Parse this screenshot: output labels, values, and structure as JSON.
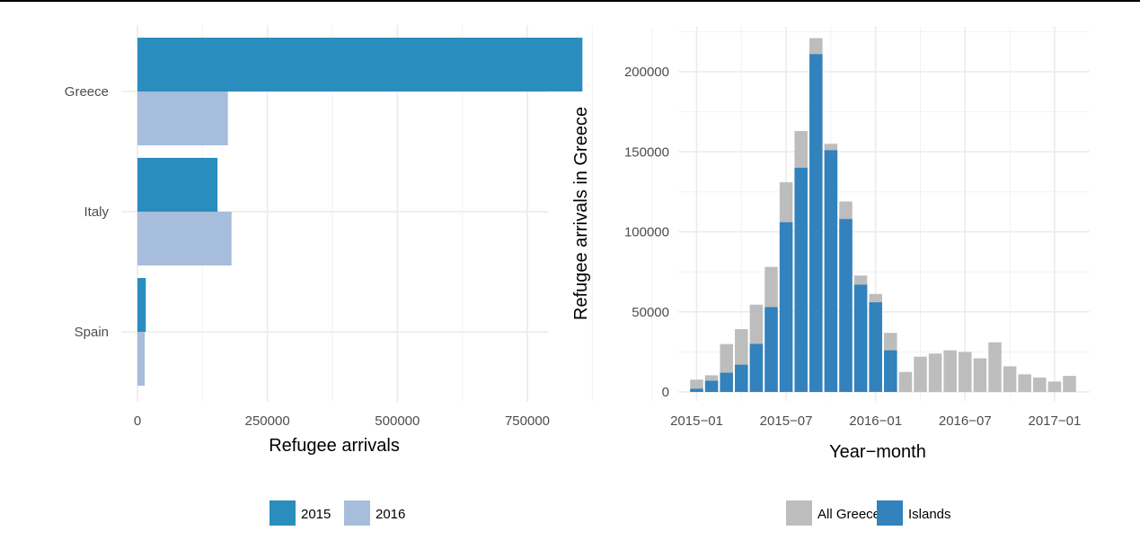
{
  "chart_data": [
    {
      "type": "bar",
      "orientation": "horizontal",
      "categories": [
        "Greece",
        "Italy",
        "Spain"
      ],
      "series": [
        {
          "name": "2015",
          "values": [
            856000,
            154000,
            16000
          ],
          "color": "#2b8cbe"
        },
        {
          "name": "2016",
          "values": [
            174000,
            181000,
            14000
          ],
          "color": "#a6bddb"
        }
      ],
      "xlabel": "Refugee arrivals",
      "ylabel": "",
      "xlim": [
        0,
        900000
      ],
      "x_ticks": [
        0,
        250000,
        500000,
        750000
      ],
      "x_tick_labels": [
        "0",
        "250000",
        "500000",
        "750000"
      ],
      "grid": true,
      "legend_position": "bottom"
    },
    {
      "type": "bar",
      "stacked": "overlay",
      "categories": [
        "2015-01",
        "2015-02",
        "2015-03",
        "2015-04",
        "2015-05",
        "2015-06",
        "2015-07",
        "2015-08",
        "2015-09",
        "2015-10",
        "2015-11",
        "2015-12",
        "2016-01",
        "2016-02",
        "2016-03",
        "2016-04",
        "2016-05",
        "2016-06",
        "2016-07",
        "2016-08",
        "2016-09",
        "2016-10",
        "2016-11",
        "2016-12",
        "2017-01",
        "2017-02"
      ],
      "series": [
        {
          "name": "All Greece",
          "color": "#bdbdbd",
          "values": [
            7700,
            10400,
            29900,
            39200,
            54500,
            78100,
            131000,
            163000,
            221000,
            155000,
            119000,
            72700,
            61200,
            36900,
            12500,
            22000,
            24000,
            26000,
            25000,
            21000,
            31000,
            16000,
            11000,
            9000,
            6500,
            10000
          ]
        },
        {
          "name": "Islands",
          "color": "#3182bd",
          "values": [
            2000,
            7000,
            12000,
            17000,
            30000,
            53000,
            106000,
            140000,
            211000,
            151000,
            108000,
            67000,
            56000,
            26000,
            0,
            0,
            0,
            0,
            0,
            0,
            0,
            0,
            0,
            0,
            0,
            0
          ]
        }
      ],
      "xlabel": "Year−month",
      "ylabel": "Refugee arrivals in Greece",
      "ylim": [
        -5000,
        232000
      ],
      "y_ticks": [
        0,
        50000,
        100000,
        150000,
        200000
      ],
      "y_tick_labels": [
        "0",
        "50000",
        "100000",
        "150000",
        "200000"
      ],
      "x_tick_labels": [
        "2015−01",
        "2015−07",
        "2016−01",
        "2016−07",
        "2017−01"
      ],
      "x_tick_categories": [
        "2015-01",
        "2015-07",
        "2016-01",
        "2016-07",
        "2017-01"
      ],
      "grid": true,
      "legend_position": "bottom"
    }
  ]
}
